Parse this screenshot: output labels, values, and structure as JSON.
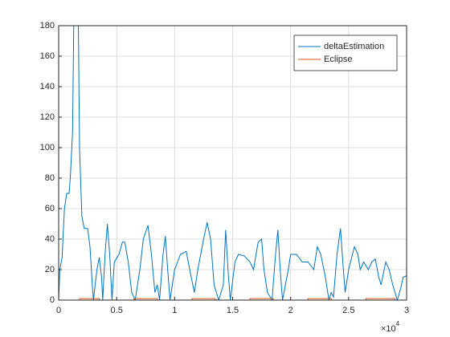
{
  "chart_data": {
    "type": "line",
    "xlim": [
      0,
      3
    ],
    "xticks": [
      0,
      0.5,
      1,
      1.5,
      2,
      2.5,
      3
    ],
    "ylim": [
      0,
      180
    ],
    "yticks": [
      0,
      20,
      40,
      60,
      80,
      100,
      120,
      140,
      160,
      180
    ],
    "x_multiplier": {
      "base": "×10",
      "exponent": "4"
    },
    "grid": true,
    "legend": "northeast",
    "series": [
      {
        "name": "deltaEstimation",
        "color": "#0072BD",
        "x": [
          0,
          0.01,
          0.03,
          0.04,
          0.05,
          0.07,
          0.09,
          0.1,
          0.12,
          0.13,
          0.14,
          0.16,
          0.17,
          0.18,
          0.2,
          0.22,
          0.25,
          0.27,
          0.29,
          0.3,
          0.33,
          0.35,
          0.37,
          0.38,
          0.4,
          0.42,
          0.44,
          0.46,
          0.48,
          0.52,
          0.55,
          0.57,
          0.6,
          0.63,
          0.66,
          0.7,
          0.73,
          0.77,
          0.8,
          0.83,
          0.85,
          0.87,
          0.9,
          0.92,
          0.94,
          0.96,
          1.0,
          1.05,
          1.1,
          1.13,
          1.17,
          1.2,
          1.25,
          1.28,
          1.31,
          1.34,
          1.38,
          1.42,
          1.44,
          1.46,
          1.48,
          1.52,
          1.55,
          1.6,
          1.65,
          1.68,
          1.72,
          1.75,
          1.77,
          1.8,
          1.84,
          1.87,
          1.89,
          1.91,
          1.93,
          1.98,
          2.0,
          2.05,
          2.1,
          2.15,
          2.2,
          2.23,
          2.26,
          2.3,
          2.33,
          2.35,
          2.37,
          2.4,
          2.43,
          2.45,
          2.47,
          2.5,
          2.55,
          2.58,
          2.6,
          2.63,
          2.67,
          2.7,
          2.73,
          2.76,
          2.78,
          2.82,
          2.85,
          2.88,
          2.92,
          2.95,
          2.97,
          3.0
        ],
        "values": [
          0,
          20,
          28,
          45,
          60,
          70,
          70,
          80,
          110,
          180,
          220,
          220,
          180,
          100,
          55,
          47,
          47,
          35,
          10,
          0,
          20,
          28,
          15,
          0,
          30,
          50,
          30,
          0,
          25,
          30,
          38,
          38,
          25,
          5,
          0,
          20,
          40,
          49,
          30,
          5,
          10,
          0,
          30,
          42,
          20,
          0,
          20,
          30,
          32,
          20,
          5,
          20,
          40,
          51,
          40,
          10,
          0,
          10,
          46,
          20,
          0,
          25,
          30,
          29,
          25,
          20,
          38,
          40,
          20,
          5,
          0,
          30,
          46,
          20,
          0,
          20,
          30,
          30,
          25,
          25,
          20,
          35,
          30,
          15,
          0,
          5,
          2,
          30,
          47,
          25,
          5,
          20,
          35,
          30,
          20,
          25,
          20,
          25,
          27,
          15,
          10,
          25,
          20,
          10,
          0,
          8,
          15,
          16
        ]
      },
      {
        "name": "Eclipse",
        "color": "#D95319",
        "x": [
          0,
          0.18,
          0.18,
          0.35,
          0.35,
          0.65,
          0.65,
          0.85,
          0.85,
          1.15,
          1.15,
          1.35,
          1.35,
          1.65,
          1.65,
          1.85,
          1.85,
          2.15,
          2.15,
          2.35,
          2.35,
          2.65,
          2.65,
          2.9,
          2.9,
          3.0
        ],
        "values": [
          0,
          0,
          1,
          1,
          0,
          0,
          1,
          1,
          0,
          0,
          1,
          1,
          0,
          0,
          1,
          1,
          0,
          0,
          1,
          1,
          0,
          0,
          1,
          1,
          0,
          0
        ]
      }
    ]
  }
}
